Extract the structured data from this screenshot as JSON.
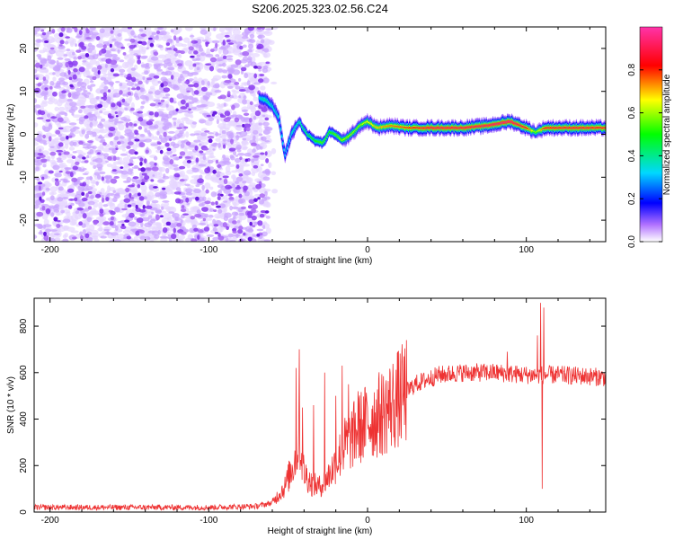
{
  "title": "S206.2025.323.02.56.C24",
  "chart_data": [
    {
      "type": "heatmap",
      "xlabel": "Height of straight line (km)",
      "ylabel": "Frequency (Hz)",
      "xlim": [
        -210,
        150
      ],
      "ylim": [
        -25,
        25
      ],
      "xticks": [
        -200,
        -100,
        0,
        100
      ],
      "yticks": [
        -20,
        -10,
        0,
        10,
        20
      ],
      "colorbar": {
        "label": "Normalized spectral amplitude",
        "range": [
          0,
          1
        ],
        "ticks": [
          0.0,
          0.2,
          0.4,
          0.6,
          0.8
        ],
        "tick_labels": [
          "0.0",
          "0.2",
          "0.4",
          "0.6",
          "0.8"
        ]
      },
      "noise_region_x": [
        -210,
        -62
      ],
      "ridge": [
        {
          "x": -68,
          "f": 8.5,
          "amp": 0.35
        },
        {
          "x": -64,
          "f": 8.0,
          "amp": 0.4
        },
        {
          "x": -60,
          "f": 6.5,
          "amp": 0.35
        },
        {
          "x": -56,
          "f": 4.0,
          "amp": 0.35
        },
        {
          "x": -52,
          "f": -5.0,
          "amp": 0.3
        },
        {
          "x": -48,
          "f": 0.0,
          "amp": 0.35
        },
        {
          "x": -43,
          "f": 3.0,
          "amp": 0.4
        },
        {
          "x": -38,
          "f": 0.0,
          "amp": 0.45
        },
        {
          "x": -33,
          "f": -1.5,
          "amp": 0.5
        },
        {
          "x": -28,
          "f": -2.0,
          "amp": 0.55
        },
        {
          "x": -24,
          "f": 0.5,
          "amp": 0.5
        },
        {
          "x": -20,
          "f": 0.0,
          "amp": 0.55
        },
        {
          "x": -16,
          "f": -1.5,
          "amp": 0.6
        },
        {
          "x": -10,
          "f": 0.0,
          "amp": 0.6
        },
        {
          "x": -5,
          "f": 2.0,
          "amp": 0.6
        },
        {
          "x": 0,
          "f": 3.0,
          "amp": 0.65
        },
        {
          "x": 6,
          "f": 1.5,
          "amp": 0.7
        },
        {
          "x": 15,
          "f": 2.0,
          "amp": 0.75
        },
        {
          "x": 25,
          "f": 1.5,
          "amp": 0.8
        },
        {
          "x": 40,
          "f": 1.5,
          "amp": 0.9
        },
        {
          "x": 60,
          "f": 1.5,
          "amp": 0.9
        },
        {
          "x": 75,
          "f": 2.0,
          "amp": 0.92
        },
        {
          "x": 90,
          "f": 3.0,
          "amp": 0.95
        },
        {
          "x": 100,
          "f": 1.5,
          "amp": 0.85
        },
        {
          "x": 106,
          "f": 0.5,
          "amp": 0.55
        },
        {
          "x": 112,
          "f": 1.5,
          "amp": 0.85
        },
        {
          "x": 130,
          "f": 1.5,
          "amp": 0.88
        },
        {
          "x": 150,
          "f": 1.5,
          "amp": 0.85
        }
      ]
    },
    {
      "type": "line",
      "xlabel": "Height of straight line (km)",
      "ylabel": "SNR (10 * v/v)",
      "xlim": [
        -210,
        150
      ],
      "ylim": [
        0,
        920
      ],
      "xticks": [
        -200,
        -100,
        0,
        100
      ],
      "yticks": [
        0,
        200,
        400,
        600,
        800
      ],
      "series": [
        {
          "name": "SNR",
          "color": "#ee3333",
          "envelope": [
            {
              "x": -210,
              "y": 20
            },
            {
              "x": -150,
              "y": 20
            },
            {
              "x": -100,
              "y": 20
            },
            {
              "x": -70,
              "y": 25
            },
            {
              "x": -60,
              "y": 40
            },
            {
              "x": -52,
              "y": 110
            },
            {
              "x": -47,
              "y": 200
            },
            {
              "x": -43,
              "y": 300
            },
            {
              "x": -40,
              "y": 170
            },
            {
              "x": -35,
              "y": 120
            },
            {
              "x": -30,
              "y": 110
            },
            {
              "x": -25,
              "y": 150
            },
            {
              "x": -20,
              "y": 210
            },
            {
              "x": -15,
              "y": 280
            },
            {
              "x": -10,
              "y": 320
            },
            {
              "x": -5,
              "y": 360
            },
            {
              "x": 0,
              "y": 390
            },
            {
              "x": 10,
              "y": 430
            },
            {
              "x": 20,
              "y": 490
            },
            {
              "x": 30,
              "y": 550
            },
            {
              "x": 45,
              "y": 590
            },
            {
              "x": 60,
              "y": 600
            },
            {
              "x": 80,
              "y": 600
            },
            {
              "x": 100,
              "y": 590
            },
            {
              "x": 120,
              "y": 590
            },
            {
              "x": 150,
              "y": 580
            }
          ],
          "spikes": [
            {
              "x": -45,
              "y": 620
            },
            {
              "x": -43,
              "y": 700
            },
            {
              "x": -41,
              "y": 450
            },
            {
              "x": -34,
              "y": 460
            },
            {
              "x": -27,
              "y": 600
            },
            {
              "x": -20,
              "y": 500
            },
            {
              "x": -16,
              "y": 630
            },
            {
              "x": -12,
              "y": 550
            },
            {
              "x": -6,
              "y": 520
            },
            {
              "x": 88,
              "y": 690
            },
            {
              "x": 107,
              "y": 760
            },
            {
              "x": 109,
              "y": 900
            },
            {
              "x": 110,
              "y": 100
            },
            {
              "x": 111,
              "y": 880
            }
          ]
        }
      ]
    }
  ]
}
